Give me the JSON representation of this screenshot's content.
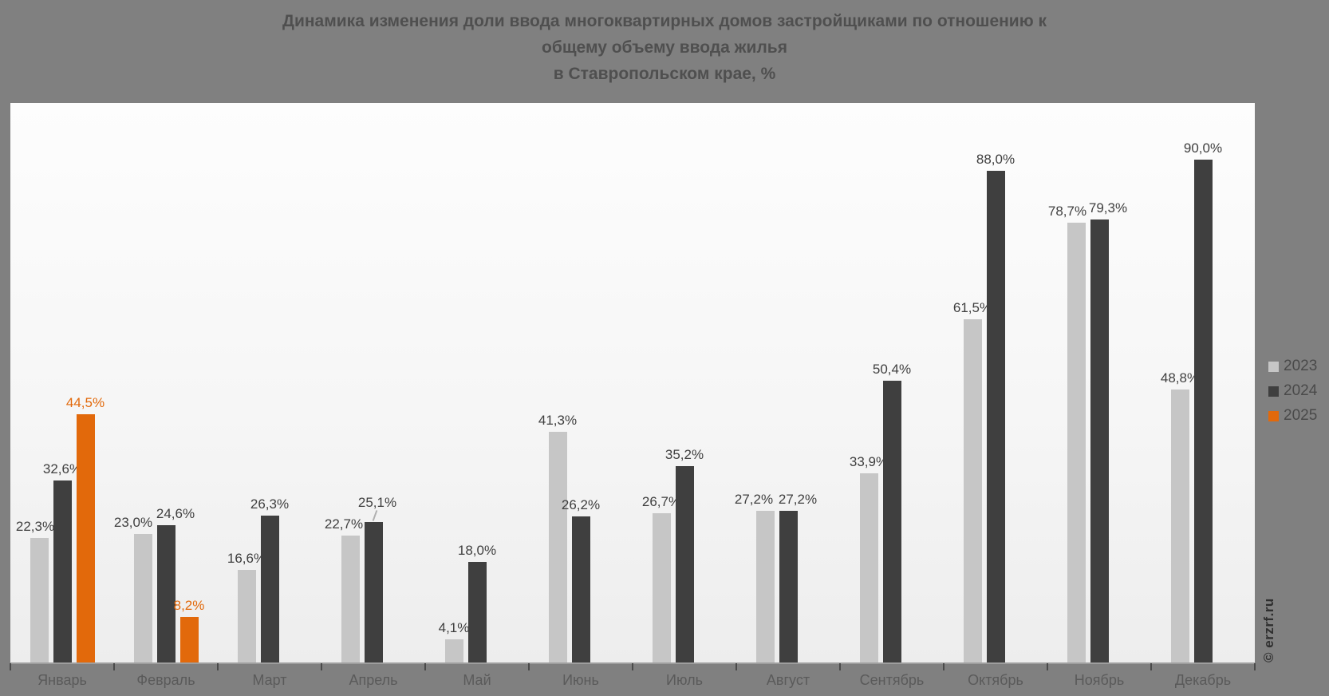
{
  "page": {
    "background": "#808080"
  },
  "title": {
    "line1": "Динамика изменения доли ввода многоквартирных домов застройщиками по отношению к",
    "line2": "общему объему ввода жилья",
    "line3": "в Ставропольском крае, %"
  },
  "watermark": "© erzrf.ru",
  "legend": {
    "position": "right",
    "items": [
      {
        "label": "2023",
        "color": "#c6c6c6"
      },
      {
        "label": "2024",
        "color": "#3f3f3f"
      },
      {
        "label": "2025",
        "color": "#e2690b"
      }
    ]
  },
  "chart_data": {
    "type": "bar",
    "title": "Динамика изменения доли ввода многоквартирных домов застройщиками по отношению к общему объему ввода жилья в Ставропольском крае, %",
    "categories": [
      "Январь",
      "Февраль",
      "Март",
      "Апрель",
      "Май",
      "Июнь",
      "Июль",
      "Август",
      "Сентябрь",
      "Октябрь",
      "Ноябрь",
      "Декабрь"
    ],
    "series": [
      {
        "name": "2023",
        "color": "#c6c6c6",
        "values": [
          22.3,
          23.0,
          16.6,
          22.7,
          4.1,
          41.3,
          26.7,
          27.2,
          33.9,
          61.5,
          78.7,
          48.8
        ],
        "labels": [
          "22,3%",
          "23,0%",
          "16,6%",
          "22,7%",
          "4,1%",
          "41,3%",
          "26,7%",
          "27,2%",
          "33,9%",
          "61,5%",
          "78,7%",
          "48,8%"
        ]
      },
      {
        "name": "2024",
        "color": "#3f3f3f",
        "values": [
          32.6,
          24.6,
          26.3,
          25.1,
          18.0,
          26.2,
          35.2,
          27.2,
          50.4,
          88.0,
          79.3,
          90.0
        ],
        "labels": [
          "32,6%",
          "24,6%",
          "26,3%",
          "25,1%",
          "18,0%",
          "26,2%",
          "35,2%",
          "27,2%",
          "50,4%",
          "88,0%",
          "79,3%",
          "90,0%"
        ]
      },
      {
        "name": "2025",
        "color": "#e2690b",
        "values": [
          44.5,
          8.2,
          null,
          null,
          null,
          null,
          null,
          null,
          null,
          null,
          null,
          null
        ],
        "labels": [
          "44,5%",
          "8,2%",
          null,
          null,
          null,
          null,
          null,
          null,
          null,
          null,
          null,
          null
        ]
      }
    ],
    "ylabel": "",
    "xlabel": "",
    "ylim": [
      0,
      100
    ],
    "grid": false,
    "value_labels_shown": true,
    "label_color_default": "#3f3f3f",
    "legend_position": "right"
  }
}
